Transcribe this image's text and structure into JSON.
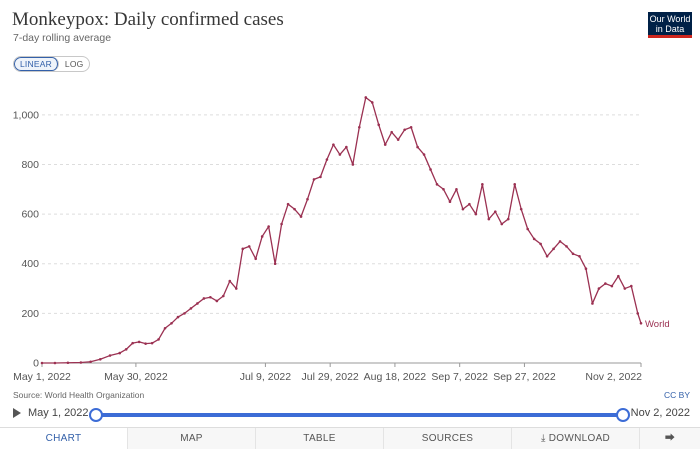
{
  "header": {
    "title": "Monkeypox: Daily confirmed cases",
    "subtitle": "7-day rolling average",
    "logo_lines": [
      "Our World",
      "in Data"
    ]
  },
  "scale_toggle": {
    "linear_label": "LINEAR",
    "log_label": "LOG",
    "selected": "LINEAR"
  },
  "footer": {
    "source": "Source: World Health Organization",
    "license": "CC BY"
  },
  "timeline": {
    "start_label": "May 1, 2022",
    "end_label": "Nov 2, 2022"
  },
  "tabs": {
    "chart": "CHART",
    "map": "MAP",
    "table": "TABLE",
    "sources": "SOURCES",
    "download": "DOWNLOAD"
  },
  "icons": {
    "play": "play-icon",
    "download": "download-icon",
    "share": "share-icon"
  },
  "colors": {
    "series": "#9b3152",
    "accent": "#3360a9",
    "logo_bg": "#002147"
  },
  "chart_data": {
    "type": "line",
    "title": "Monkeypox: Daily confirmed cases",
    "subtitle": "7-day rolling average",
    "xlabel": "",
    "ylabel": "",
    "x_ticks": [
      "May 1, 2022",
      "May 30, 2022",
      "Jul 9, 2022",
      "Jul 29, 2022",
      "Aug 18, 2022",
      "Sep 7, 2022",
      "Sep 27, 2022",
      "Nov 2, 2022"
    ],
    "x_tick_dates": [
      "2022-05-01",
      "2022-05-30",
      "2022-07-09",
      "2022-07-29",
      "2022-08-18",
      "2022-09-07",
      "2022-09-27",
      "2022-11-02"
    ],
    "y_ticks": [
      0,
      200,
      400,
      600,
      800,
      1000
    ],
    "y_tick_labels": [
      "0",
      "200",
      "400",
      "600",
      "800",
      "1,000"
    ],
    "ylim": [
      0,
      1080
    ],
    "xlim": [
      "2022-05-01",
      "2022-11-02"
    ],
    "grid": "horizontal dashed",
    "series": [
      {
        "name": "World",
        "x": [
          "2022-05-01",
          "2022-05-05",
          "2022-05-09",
          "2022-05-13",
          "2022-05-16",
          "2022-05-19",
          "2022-05-22",
          "2022-05-25",
          "2022-05-27",
          "2022-05-29",
          "2022-05-31",
          "2022-06-02",
          "2022-06-04",
          "2022-06-06",
          "2022-06-08",
          "2022-06-10",
          "2022-06-12",
          "2022-06-14",
          "2022-06-16",
          "2022-06-18",
          "2022-06-20",
          "2022-06-22",
          "2022-06-24",
          "2022-06-26",
          "2022-06-28",
          "2022-06-30",
          "2022-07-02",
          "2022-07-04",
          "2022-07-06",
          "2022-07-08",
          "2022-07-10",
          "2022-07-12",
          "2022-07-14",
          "2022-07-16",
          "2022-07-18",
          "2022-07-20",
          "2022-07-22",
          "2022-07-24",
          "2022-07-26",
          "2022-07-28",
          "2022-07-30",
          "2022-08-01",
          "2022-08-03",
          "2022-08-05",
          "2022-08-07",
          "2022-08-09",
          "2022-08-11",
          "2022-08-13",
          "2022-08-15",
          "2022-08-17",
          "2022-08-19",
          "2022-08-21",
          "2022-08-23",
          "2022-08-25",
          "2022-08-27",
          "2022-08-29",
          "2022-08-31",
          "2022-09-02",
          "2022-09-04",
          "2022-09-06",
          "2022-09-08",
          "2022-09-10",
          "2022-09-12",
          "2022-09-14",
          "2022-09-16",
          "2022-09-18",
          "2022-09-20",
          "2022-09-22",
          "2022-09-24",
          "2022-09-26",
          "2022-09-28",
          "2022-09-30",
          "2022-10-02",
          "2022-10-04",
          "2022-10-06",
          "2022-10-08",
          "2022-10-10",
          "2022-10-12",
          "2022-10-14",
          "2022-10-16",
          "2022-10-18",
          "2022-10-20",
          "2022-10-22",
          "2022-10-24",
          "2022-10-26",
          "2022-10-28",
          "2022-10-30",
          "2022-11-01",
          "2022-11-02"
        ],
        "values": [
          0,
          0,
          1,
          2,
          5,
          15,
          30,
          40,
          55,
          80,
          85,
          78,
          80,
          95,
          140,
          160,
          185,
          200,
          220,
          240,
          260,
          265,
          250,
          270,
          330,
          300,
          460,
          470,
          420,
          510,
          550,
          400,
          560,
          640,
          620,
          590,
          660,
          740,
          750,
          820,
          880,
          840,
          870,
          800,
          950,
          1070,
          1050,
          960,
          880,
          930,
          900,
          940,
          950,
          870,
          840,
          780,
          720,
          700,
          650,
          700,
          620,
          640,
          600,
          720,
          580,
          610,
          560,
          580,
          720,
          620,
          540,
          500,
          480,
          430,
          460,
          490,
          470,
          440,
          430,
          380,
          240,
          300,
          320,
          310,
          350,
          300,
          310,
          200,
          160
        ]
      }
    ],
    "end_label": "World"
  }
}
